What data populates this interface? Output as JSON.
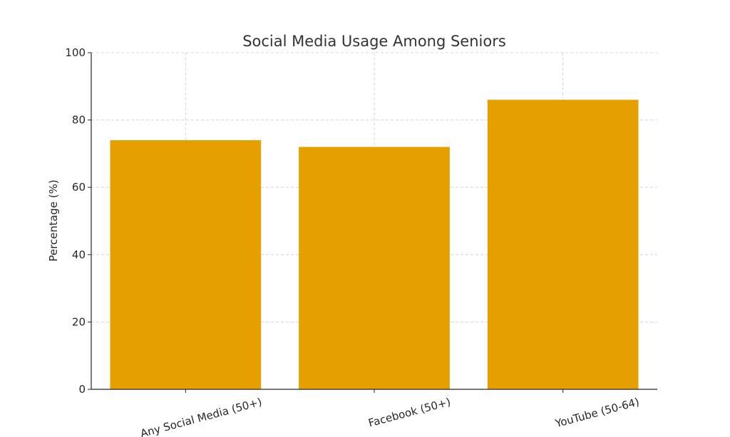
{
  "chart_data": {
    "type": "bar",
    "title": "Social Media Usage Among Seniors",
    "xlabel": "",
    "ylabel": "Percentage (%)",
    "categories": [
      "Any Social Media (50+)",
      "Facebook (50+)",
      "YouTube (50-64)"
    ],
    "values": [
      74,
      72,
      86
    ],
    "ylim": [
      0,
      100
    ],
    "yticks": [
      0,
      20,
      40,
      60,
      80,
      100
    ],
    "grid": true,
    "bar_color": "#e5a000"
  }
}
